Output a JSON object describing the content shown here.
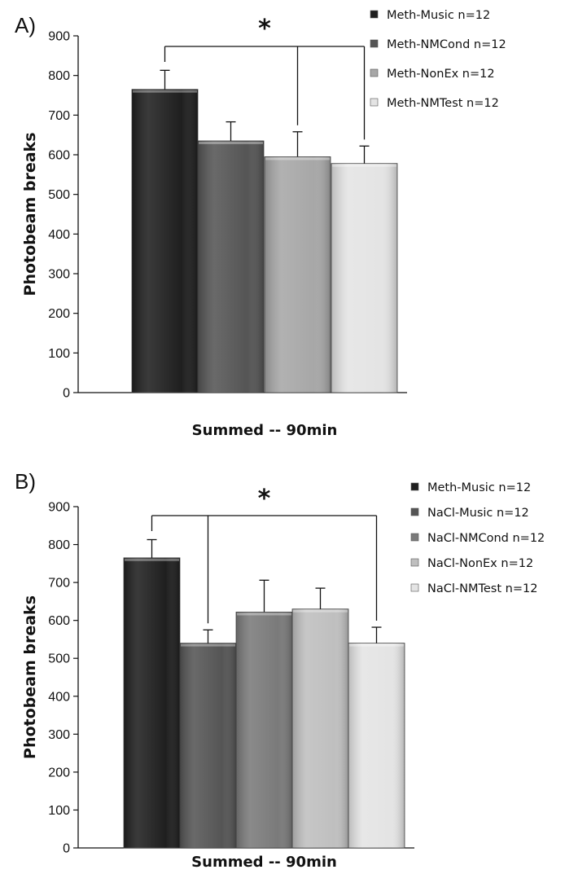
{
  "chart_data": [
    {
      "type": "bar",
      "panel_label": "A)",
      "ylabel": "Photobeam breaks",
      "xlabel": "Summed -- 90min",
      "ylim": [
        0,
        900
      ],
      "yticks": [
        "0",
        "100",
        "200",
        "300",
        "400",
        "500",
        "600",
        "700",
        "800",
        "900"
      ],
      "grid": false,
      "legend_position": "right",
      "significance": "*",
      "bracket_from": 0,
      "bracket_to": [
        2,
        3
      ],
      "series": [
        {
          "name": "Meth-Music n=12",
          "value": 765,
          "error": 48,
          "color": "#1f1f1f"
        },
        {
          "name": "Meth-NMCond n=12",
          "value": 635,
          "error": 48,
          "color": "#555555"
        },
        {
          "name": "Meth-NonEx n=12",
          "value": 595,
          "error": 63,
          "color": "#a7a7a7"
        },
        {
          "name": "Meth-NMTest n=12",
          "value": 578,
          "error": 44,
          "color": "#e4e4e4"
        }
      ]
    },
    {
      "type": "bar",
      "panel_label": "B)",
      "ylabel": "Photobeam breaks",
      "xlabel": "Summed -- 90min",
      "ylim": [
        0,
        900
      ],
      "yticks": [
        "0",
        "100",
        "200",
        "300",
        "400",
        "500",
        "600",
        "700",
        "800",
        "900"
      ],
      "grid": false,
      "legend_position": "right",
      "significance": "*",
      "bracket_from": 0,
      "bracket_to": [
        1,
        4
      ],
      "series": [
        {
          "name": "Meth-Music n=12",
          "value": 765,
          "error": 48,
          "color": "#1f1f1f"
        },
        {
          "name": "NaCl-Music n=12",
          "value": 540,
          "error": 35,
          "color": "#555555"
        },
        {
          "name": "NaCl-NMCond n=12",
          "value": 622,
          "error": 84,
          "color": "#7a7a7a"
        },
        {
          "name": "NaCl-NonEx n=12",
          "value": 630,
          "error": 55,
          "color": "#bfbfbf"
        },
        {
          "name": "NaCl-NMTest n=12",
          "value": 540,
          "error": 42,
          "color": "#e4e4e4"
        }
      ]
    }
  ]
}
